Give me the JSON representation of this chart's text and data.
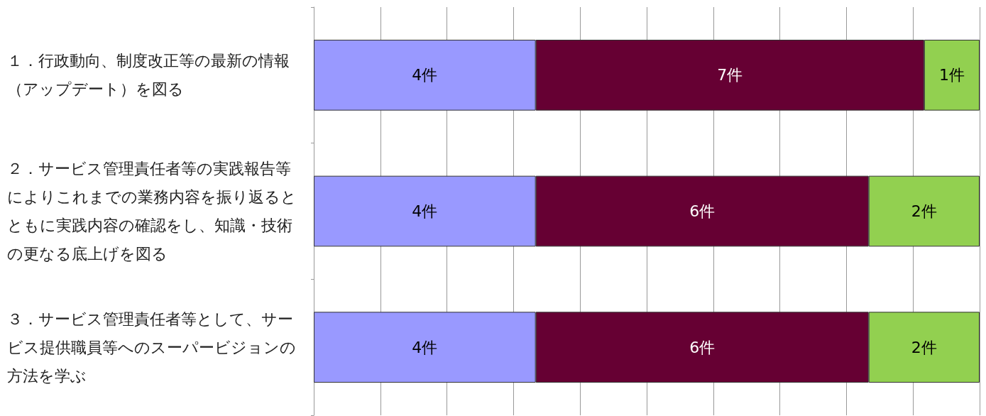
{
  "chart_data": {
    "type": "bar",
    "orientation": "horizontal",
    "stacked": true,
    "categories": [
      "１．行政動向、制度改正等の最新の情報（アップデート）を図る",
      "２．サービス管理責任者等の実践報告等によりこれまでの業務内容を振り返るとともに実践内容の確認をし、知識・技術の更なる底上げを図る",
      "３．サービス管理責任者等として、サービス提供職員等へのスーパービジョンの方法を学ぶ"
    ],
    "series": [
      {
        "color": "#9999ff",
        "values": [
          4,
          4,
          4
        ],
        "value_labels": [
          "4件",
          "4件",
          "4件"
        ]
      },
      {
        "color": "#660033",
        "values": [
          7,
          6,
          6
        ],
        "value_labels": [
          "7件",
          "6件",
          "6件"
        ]
      },
      {
        "color": "#92d050",
        "values": [
          1,
          2,
          2
        ],
        "value_labels": [
          "1件",
          "2件",
          "2件"
        ]
      }
    ],
    "xlim": [
      0,
      12
    ],
    "xticks": [
      {
        "value": 0,
        "label": null
      },
      {
        "value": 1.2,
        "label": null
      },
      {
        "value": 2.4,
        "label": null
      },
      {
        "value": 3.6,
        "label": null
      },
      {
        "value": 4.8,
        "label": null
      },
      {
        "value": 6,
        "label": null
      },
      {
        "value": 7.2,
        "label": null
      },
      {
        "value": 8.4,
        "label": null
      },
      {
        "value": 9.6,
        "label": null
      },
      {
        "value": 10.8,
        "label": null
      },
      {
        "value": 12,
        "label": null
      }
    ],
    "tick_labels": "y",
    "grid": "x"
  }
}
